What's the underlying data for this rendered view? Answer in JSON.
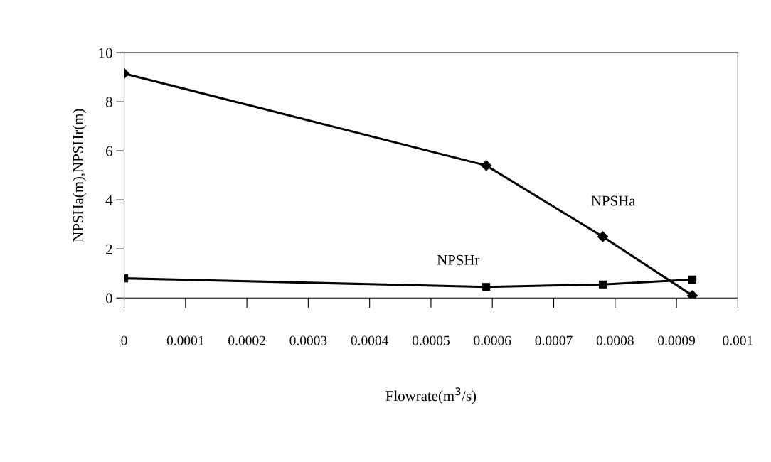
{
  "chart_data": {
    "type": "line",
    "xlabel": "Flowrate(m$^{3}$/s)",
    "ylabel": "NPSHa(m),NPSHr(m)",
    "x": [
      0,
      0.00059,
      0.00078,
      0.000926
    ],
    "series": [
      {
        "name": "NPSHa",
        "color": "#000000",
        "marker": "diamond",
        "values": [
          9.15,
          5.4,
          2.5,
          0.1
        ]
      },
      {
        "name": "NPSHr",
        "color": "#000000",
        "marker": "square",
        "values": [
          0.8,
          0.45,
          0.55,
          0.75
        ]
      }
    ],
    "xlim": [
      0,
      0.001
    ],
    "xticks": [
      0,
      0.0001,
      0.0002,
      0.0003,
      0.0004,
      0.0005,
      0.0006,
      0.0007,
      0.0008,
      0.0009,
      0.001
    ],
    "ylim": [
      0,
      10
    ],
    "yticks": [
      0,
      2,
      4,
      6,
      8,
      10
    ],
    "grid": false,
    "legend": false,
    "line_style": "solid"
  }
}
